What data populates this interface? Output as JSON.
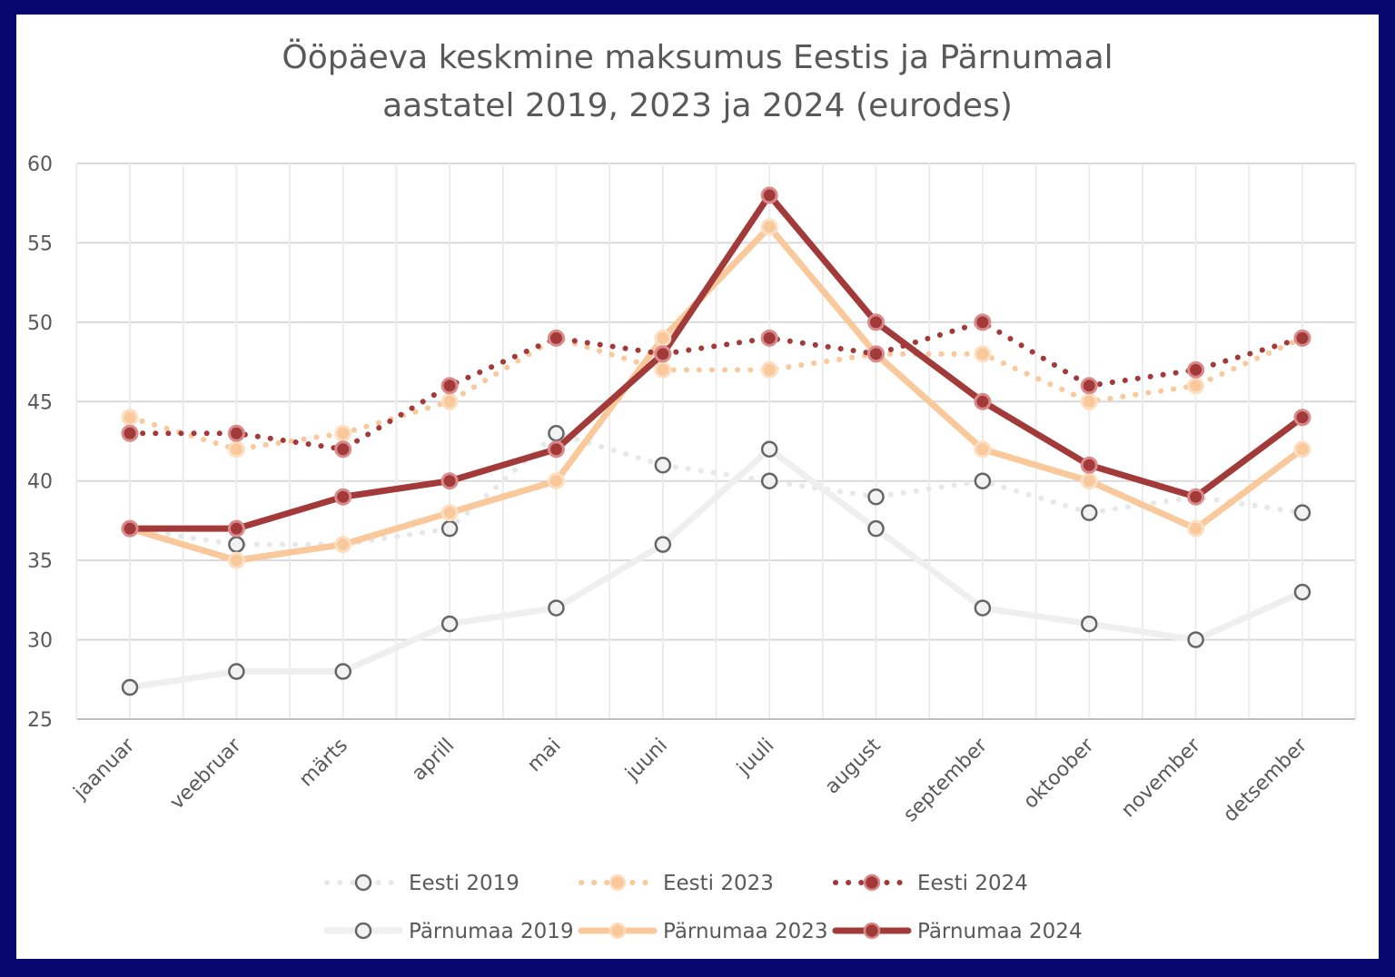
{
  "chart_data": {
    "type": "line",
    "title": "Ööpäeva keskmine maksumus Eestis ja Pärnumaal",
    "subtitle": "aastatel 2019, 2023 ja 2024 (eurodes)",
    "xlabel": "",
    "ylabel": "",
    "ylim": [
      25,
      60
    ],
    "yticks": [
      25,
      30,
      35,
      40,
      45,
      50,
      55,
      60
    ],
    "grid": true,
    "legend_position": "bottom",
    "categories": [
      "jaanuar",
      "veebruar",
      "märts",
      "aprill",
      "mai",
      "juuni",
      "juuli",
      "august",
      "september",
      "oktoober",
      "november",
      "detsember"
    ],
    "series": [
      {
        "name": "Eesti 2019",
        "style": "dotted",
        "color": "#e8e8e8",
        "marker_fill": "#f2f2f2",
        "marker_stroke": "#666666",
        "values": [
          37,
          36,
          36,
          37,
          43,
          41,
          40,
          39,
          40,
          38,
          39,
          38
        ]
      },
      {
        "name": "Eesti 2023",
        "style": "dotted",
        "color": "#f9c89b",
        "marker_fill": "#f9c89b",
        "marker_stroke": "#fde0c4",
        "values": [
          44,
          42,
          43,
          45,
          49,
          47,
          47,
          48,
          48,
          45,
          46,
          49
        ]
      },
      {
        "name": "Eesti 2024",
        "style": "dotted",
        "color": "#a33a3a",
        "marker_fill": "#a33a3a",
        "marker_stroke": "#d98a8a",
        "values": [
          43,
          43,
          42,
          46,
          49,
          48,
          49,
          48,
          50,
          46,
          47,
          49
        ]
      },
      {
        "name": "Pärnumaa 2019",
        "style": "solid",
        "color": "#efefef",
        "marker_fill": "#f2f2f2",
        "marker_stroke": "#666666",
        "values": [
          27,
          28,
          28,
          31,
          32,
          36,
          42,
          37,
          32,
          31,
          30,
          33
        ]
      },
      {
        "name": "Pärnumaa 2023",
        "style": "solid",
        "color": "#f9c89b",
        "marker_fill": "#f9c89b",
        "marker_stroke": "#fde0c4",
        "values": [
          37,
          35,
          36,
          38,
          40,
          49,
          56,
          48,
          42,
          40,
          37,
          42
        ]
      },
      {
        "name": "Pärnumaa 2024",
        "style": "solid",
        "color": "#a33a3a",
        "marker_fill": "#a33a3a",
        "marker_stroke": "#d98a8a",
        "values": [
          37,
          37,
          39,
          40,
          42,
          48,
          58,
          50,
          45,
          41,
          39,
          44
        ]
      }
    ]
  },
  "colors": {
    "frame": "#06066e",
    "background": "#ffffff"
  }
}
